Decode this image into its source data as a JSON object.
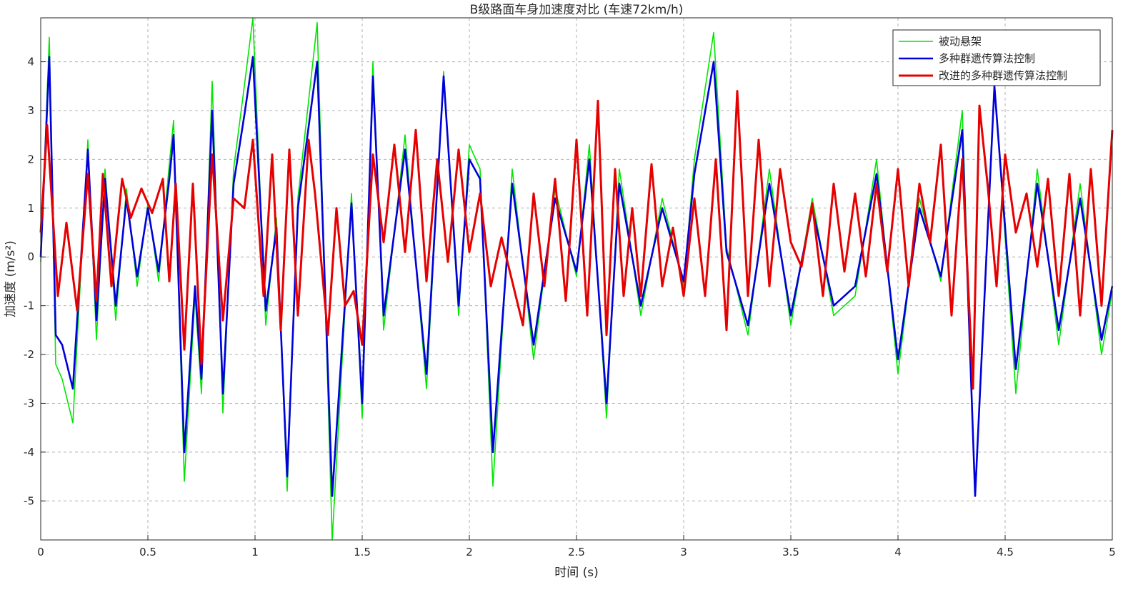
{
  "chart_data": {
    "type": "line",
    "title": "B级路面车身加速度对比 (车速72km/h)",
    "xlabel": "时间 (s)",
    "ylabel": "加速度 (m/s²)",
    "xlim": [
      0,
      5
    ],
    "ylim": [
      -5.8,
      4.9
    ],
    "xticks": [
      0,
      0.5,
      1,
      1.5,
      2,
      2.5,
      3,
      3.5,
      4,
      4.5,
      5
    ],
    "yticks": [
      -5,
      -4,
      -3,
      -2,
      -1,
      0,
      1,
      2,
      3,
      4
    ],
    "xtick_labels": [
      "0",
      "0.5",
      "1",
      "1.5",
      "2",
      "2.5",
      "3",
      "3.5",
      "4",
      "4.5",
      "5"
    ],
    "ytick_labels": [
      "-5",
      "-4",
      "-3",
      "-2",
      "-1",
      "0",
      "1",
      "2",
      "3",
      "4"
    ],
    "grid": true,
    "legend_position": "top-right",
    "series": [
      {
        "name": "被动悬架",
        "color": "#00e600",
        "x": [
          0,
          0.04,
          0.07,
          0.1,
          0.15,
          0.22,
          0.26,
          0.3,
          0.35,
          0.4,
          0.45,
          0.5,
          0.55,
          0.6,
          0.62,
          0.67,
          0.72,
          0.75,
          0.8,
          0.85,
          0.9,
          0.95,
          0.99,
          1.05,
          1.1,
          1.15,
          1.2,
          1.29,
          1.36,
          1.45,
          1.5,
          1.55,
          1.6,
          1.7,
          1.8,
          1.88,
          1.95,
          2.0,
          2.05,
          2.11,
          2.2,
          2.3,
          2.4,
          2.5,
          2.56,
          2.64,
          2.7,
          2.8,
          2.9,
          3.0,
          3.05,
          3.14,
          3.2,
          3.3,
          3.4,
          3.5,
          3.6,
          3.7,
          3.8,
          3.9,
          4.0,
          4.1,
          4.2,
          4.3,
          4.36,
          4.45,
          4.55,
          4.65,
          4.75,
          4.85,
          4.95,
          5.0
        ],
        "y": [
          -0.1,
          4.5,
          -2.2,
          -2.5,
          -3.4,
          2.4,
          -1.7,
          1.8,
          -1.3,
          1.4,
          -0.6,
          1.1,
          -0.5,
          1.9,
          2.8,
          -4.6,
          -0.8,
          -2.8,
          3.6,
          -3.2,
          1.8,
          3.5,
          4.9,
          -1.4,
          0.8,
          -4.8,
          1.2,
          4.8,
          -5.8,
          1.3,
          -3.3,
          4.0,
          -1.5,
          2.5,
          -2.7,
          3.8,
          -1.2,
          2.3,
          1.8,
          -4.7,
          1.8,
          -2.1,
          1.4,
          -0.4,
          2.3,
          -3.3,
          1.8,
          -1.2,
          1.2,
          -0.6,
          2.0,
          4.6,
          0.2,
          -1.6,
          1.8,
          -1.4,
          1.2,
          -1.2,
          -0.8,
          2.0,
          -2.4,
          1.2,
          -0.5,
          3.0,
          -4.9,
          3.6,
          -2.8,
          1.8,
          -1.8,
          1.5,
          -2.0,
          -0.7
        ]
      },
      {
        "name": "多种群遗传算法控制",
        "color": "#0000d9",
        "x": [
          0,
          0.04,
          0.07,
          0.1,
          0.15,
          0.22,
          0.26,
          0.3,
          0.35,
          0.4,
          0.45,
          0.5,
          0.55,
          0.6,
          0.62,
          0.67,
          0.72,
          0.75,
          0.8,
          0.85,
          0.9,
          0.95,
          0.99,
          1.05,
          1.1,
          1.15,
          1.2,
          1.29,
          1.36,
          1.45,
          1.5,
          1.55,
          1.6,
          1.7,
          1.8,
          1.88,
          1.95,
          2.0,
          2.05,
          2.11,
          2.2,
          2.3,
          2.4,
          2.5,
          2.56,
          2.64,
          2.7,
          2.8,
          2.9,
          3.0,
          3.05,
          3.14,
          3.2,
          3.3,
          3.4,
          3.5,
          3.6,
          3.7,
          3.8,
          3.9,
          4.0,
          4.1,
          4.2,
          4.3,
          4.36,
          4.45,
          4.55,
          4.65,
          4.75,
          4.85,
          4.95,
          5.0
        ],
        "y": [
          0.0,
          4.1,
          -1.6,
          -1.8,
          -2.7,
          2.2,
          -1.3,
          1.6,
          -1.0,
          1.2,
          -0.4,
          1.0,
          -0.3,
          1.6,
          2.5,
          -4.0,
          -0.6,
          -2.5,
          3.0,
          -2.8,
          1.5,
          2.9,
          4.1,
          -1.1,
          0.6,
          -4.5,
          1.0,
          4.0,
          -4.9,
          1.1,
          -3.0,
          3.7,
          -1.2,
          2.2,
          -2.4,
          3.7,
          -1.0,
          2.0,
          1.6,
          -4.0,
          1.5,
          -1.8,
          1.2,
          -0.3,
          2.0,
          -3.0,
          1.5,
          -1.0,
          1.0,
          -0.5,
          1.7,
          4.0,
          0.1,
          -1.4,
          1.5,
          -1.2,
          1.0,
          -1.0,
          -0.6,
          1.7,
          -2.1,
          1.0,
          -0.4,
          2.6,
          -4.9,
          3.5,
          -2.3,
          1.5,
          -1.5,
          1.2,
          -1.7,
          -0.6
        ]
      },
      {
        "name": "改进的多种群遗传算法控制",
        "color": "#e60000",
        "x": [
          0,
          0.03,
          0.08,
          0.12,
          0.17,
          0.22,
          0.26,
          0.29,
          0.33,
          0.38,
          0.42,
          0.47,
          0.52,
          0.57,
          0.6,
          0.63,
          0.67,
          0.71,
          0.75,
          0.8,
          0.85,
          0.9,
          0.95,
          0.99,
          1.04,
          1.08,
          1.12,
          1.16,
          1.2,
          1.25,
          1.28,
          1.34,
          1.38,
          1.42,
          1.46,
          1.5,
          1.55,
          1.6,
          1.65,
          1.7,
          1.75,
          1.8,
          1.85,
          1.9,
          1.95,
          2.0,
          2.05,
          2.1,
          2.15,
          2.2,
          2.25,
          2.3,
          2.35,
          2.4,
          2.45,
          2.5,
          2.55,
          2.6,
          2.64,
          2.68,
          2.72,
          2.76,
          2.8,
          2.85,
          2.9,
          2.95,
          3.0,
          3.05,
          3.1,
          3.15,
          3.2,
          3.25,
          3.3,
          3.35,
          3.4,
          3.45,
          3.5,
          3.55,
          3.6,
          3.65,
          3.7,
          3.75,
          3.8,
          3.85,
          3.9,
          3.95,
          4.0,
          4.05,
          4.1,
          4.15,
          4.2,
          4.25,
          4.3,
          4.35,
          4.38,
          4.42,
          4.46,
          4.5,
          4.55,
          4.6,
          4.65,
          4.7,
          4.75,
          4.8,
          4.85,
          4.9,
          4.95,
          5.0
        ],
        "y": [
          0.5,
          2.7,
          -0.8,
          0.7,
          -1.1,
          1.7,
          -0.9,
          1.7,
          -0.6,
          1.6,
          0.8,
          1.4,
          0.9,
          1.6,
          -0.5,
          1.5,
          -1.9,
          1.5,
          -2.2,
          2.1,
          -1.3,
          1.2,
          1.0,
          2.4,
          -0.8,
          2.1,
          -1.5,
          2.2,
          -1.2,
          2.4,
          1.3,
          -1.6,
          1.0,
          -1.0,
          -0.7,
          -1.8,
          2.1,
          0.3,
          2.3,
          0.1,
          2.6,
          -0.5,
          2.0,
          -0.1,
          2.2,
          0.1,
          1.3,
          -0.6,
          0.4,
          -0.5,
          -1.4,
          1.3,
          -0.6,
          1.6,
          -0.9,
          2.4,
          -1.2,
          3.2,
          -1.6,
          1.8,
          -0.8,
          1.0,
          -0.8,
          1.9,
          -0.6,
          0.6,
          -0.8,
          1.2,
          -0.8,
          2.0,
          -1.5,
          3.4,
          -0.8,
          2.4,
          -0.6,
          1.8,
          0.3,
          -0.2,
          1.1,
          -0.8,
          1.5,
          -0.3,
          1.3,
          -0.4,
          1.5,
          -0.3,
          1.8,
          -0.6,
          1.5,
          0.3,
          2.3,
          -1.2,
          2.0,
          -2.7,
          3.1,
          1.4,
          -0.6,
          2.1,
          0.5,
          1.3,
          -0.2,
          1.6,
          -0.8,
          1.7,
          -1.2,
          1.8,
          -1.0,
          2.6
        ]
      }
    ]
  }
}
